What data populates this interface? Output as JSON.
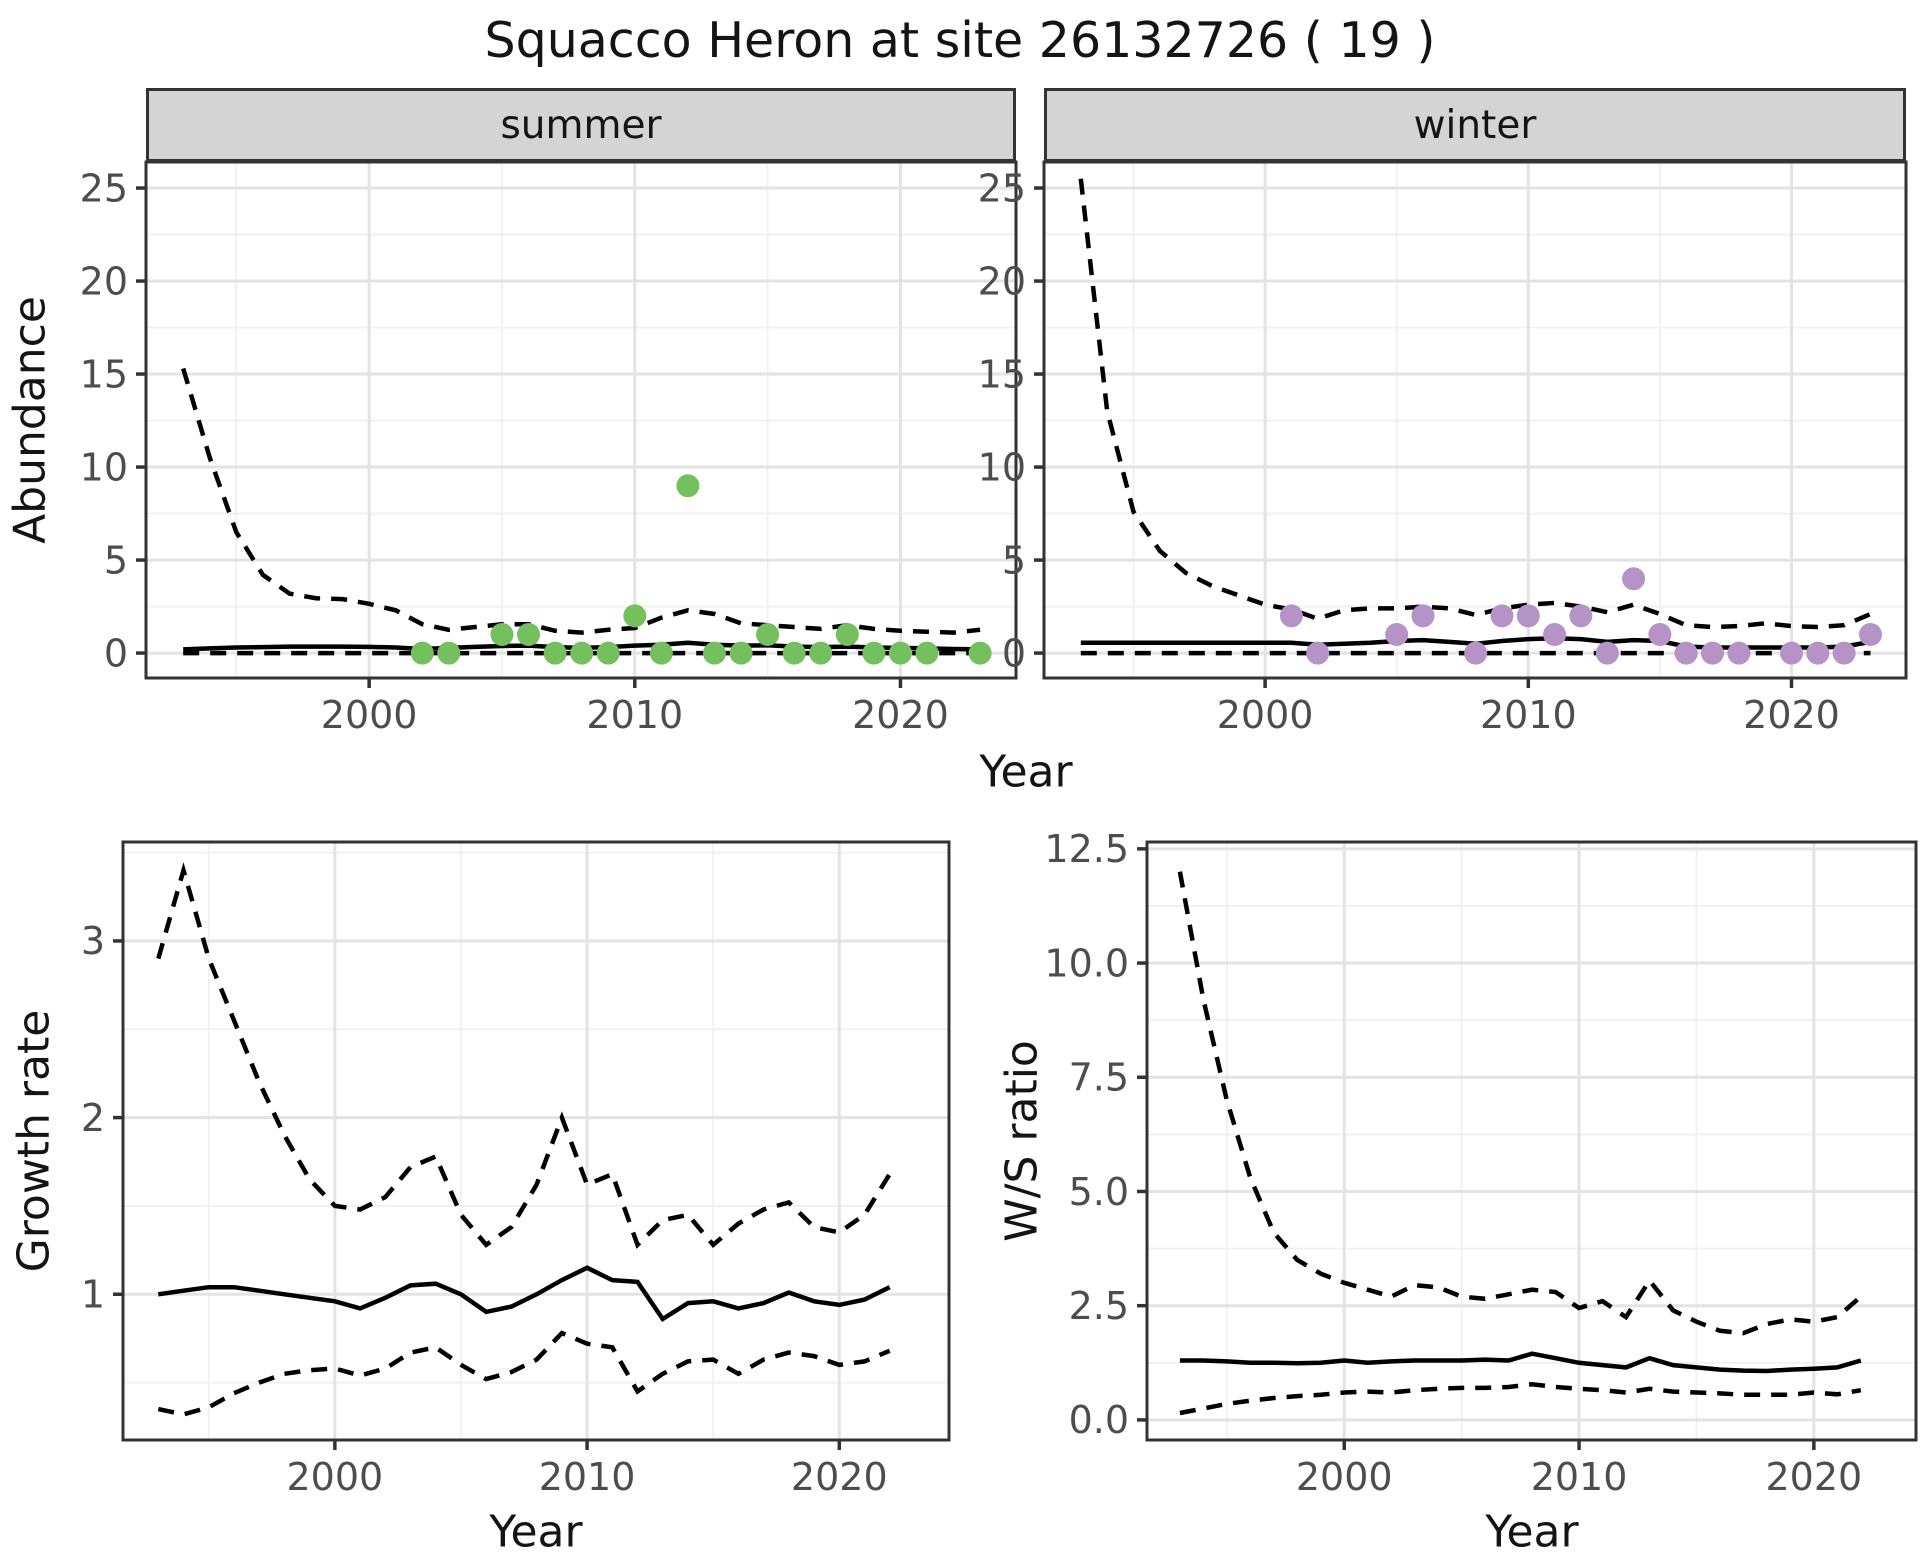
{
  "page": {
    "title": "Squacco Heron at site 26132726 ( 19 )"
  },
  "facets": {
    "summer_label": "summer",
    "winter_label": "winter"
  },
  "axes": {
    "abundance_label": "Abundance",
    "growth_label": "Growth rate",
    "ws_label": "W/S ratio",
    "year_label_top": "Year",
    "year_label_bottom_left": "Year",
    "year_label_bottom_right": "Year"
  },
  "style": {
    "summer_point_color": "#74bf5e",
    "winter_point_color": "#b593c7",
    "line_color": "#000000",
    "grid_major_color": "#e3e3e3",
    "grid_minor_color": "#f0f0f0",
    "panel_border_color": "#333333",
    "tick_mark_color": "#333333",
    "tick_label_color": "#4d4d4d",
    "strip_bg_color": "#d4d4d4"
  },
  "chart_data": [
    {
      "id": "abundance_summer",
      "type": "line",
      "facet": "summer",
      "xlabel": "Year",
      "ylabel": "Abundance",
      "xlim": [
        1991.6,
        2024.35
      ],
      "ylim": [
        -1.34,
        26.4
      ],
      "xticks": {
        "major": [
          2000,
          2010,
          2020
        ],
        "minor": [
          1995,
          2005,
          2015
        ],
        "labels": [
          "2000",
          "2010",
          "2020"
        ]
      },
      "yticks": {
        "major": [
          0,
          5,
          10,
          15,
          20,
          25
        ],
        "minor": [
          2.5,
          7.5,
          12.5,
          17.5,
          22.5
        ],
        "labels": [
          "0",
          "5",
          "10",
          "15",
          "20",
          "25"
        ]
      },
      "x": [
        1993,
        1994,
        1995,
        1996,
        1997,
        1998,
        1999,
        2000,
        2001,
        2002,
        2003,
        2004,
        2005,
        2006,
        2007,
        2008,
        2009,
        2010,
        2011,
        2012,
        2013,
        2014,
        2015,
        2016,
        2017,
        2018,
        2019,
        2020,
        2021,
        2022,
        2023
      ],
      "series": [
        {
          "name": "upper_95ci",
          "style": "dashed",
          "values": [
            15.3,
            10.5,
            6.5,
            4.2,
            3.2,
            2.95,
            2.9,
            2.65,
            2.3,
            1.55,
            1.25,
            1.4,
            1.55,
            1.55,
            1.2,
            1.1,
            1.25,
            1.35,
            1.9,
            2.3,
            2.1,
            1.6,
            1.5,
            1.4,
            1.3,
            1.5,
            1.3,
            1.2,
            1.15,
            1.1,
            1.25
          ]
        },
        {
          "name": "median",
          "style": "solid",
          "values": [
            0.2,
            0.25,
            0.3,
            0.32,
            0.35,
            0.35,
            0.35,
            0.33,
            0.3,
            0.22,
            0.28,
            0.33,
            0.38,
            0.4,
            0.32,
            0.28,
            0.32,
            0.4,
            0.45,
            0.55,
            0.45,
            0.4,
            0.42,
            0.35,
            0.32,
            0.35,
            0.3,
            0.28,
            0.25,
            0.22,
            0.2
          ]
        },
        {
          "name": "lower_95ci",
          "style": "dashed",
          "values": [
            0,
            0,
            0,
            0,
            0,
            0,
            0,
            0,
            0,
            0,
            0,
            0,
            0,
            0,
            0,
            0,
            0,
            0,
            0,
            0,
            0,
            0,
            0,
            0,
            0,
            0,
            0,
            0,
            0,
            0,
            0
          ]
        }
      ],
      "points": {
        "name": "observed_counts_summer",
        "color": "#74bf5e",
        "x": [
          2002,
          2003,
          2005,
          2006,
          2007,
          2008,
          2009,
          2010,
          2011,
          2012,
          2013,
          2014,
          2015,
          2016,
          2017,
          2018,
          2019,
          2020,
          2021,
          2023
        ],
        "y": [
          0,
          0,
          1,
          1,
          0,
          0,
          0,
          2,
          0,
          9,
          0,
          0,
          1,
          0,
          0,
          1,
          0,
          0,
          0,
          0
        ]
      }
    },
    {
      "id": "abundance_winter",
      "type": "line",
      "facet": "winter",
      "xlabel": "Year",
      "ylabel": "Abundance",
      "xlim": [
        1991.6,
        2024.35
      ],
      "ylim": [
        -1.34,
        26.4
      ],
      "xticks": {
        "major": [
          2000,
          2010,
          2020
        ],
        "minor": [
          1995,
          2005,
          2015
        ],
        "labels": [
          "2000",
          "2010",
          "2020"
        ]
      },
      "yticks": {
        "major": [
          0,
          5,
          10,
          15,
          20,
          25
        ],
        "minor": [
          2.5,
          7.5,
          12.5,
          17.5,
          22.5
        ],
        "labels": [
          "0",
          "5",
          "10",
          "15",
          "20",
          "25"
        ]
      },
      "x": [
        1993,
        1994,
        1995,
        1996,
        1997,
        1998,
        1999,
        2000,
        2001,
        2002,
        2003,
        2004,
        2005,
        2006,
        2007,
        2008,
        2009,
        2010,
        2011,
        2012,
        2013,
        2014,
        2015,
        2016,
        2017,
        2018,
        2019,
        2020,
        2021,
        2022,
        2023
      ],
      "series": [
        {
          "name": "upper_95ci",
          "style": "dashed",
          "values": [
            25.5,
            13,
            7.6,
            5.5,
            4.3,
            3.6,
            3.1,
            2.6,
            2.35,
            1.85,
            2.3,
            2.4,
            2.4,
            2.5,
            2.4,
            2.05,
            2.4,
            2.6,
            2.7,
            2.5,
            2.2,
            2.6,
            2.1,
            1.5,
            1.4,
            1.45,
            1.6,
            1.45,
            1.4,
            1.5,
            2.1
          ]
        },
        {
          "name": "median",
          "style": "solid",
          "values": [
            0.55,
            0.55,
            0.55,
            0.55,
            0.55,
            0.55,
            0.55,
            0.55,
            0.55,
            0.45,
            0.5,
            0.55,
            0.65,
            0.7,
            0.6,
            0.5,
            0.65,
            0.75,
            0.8,
            0.75,
            0.6,
            0.7,
            0.65,
            0.35,
            0.3,
            0.3,
            0.3,
            0.3,
            0.3,
            0.35,
            0.6
          ]
        },
        {
          "name": "lower_95ci",
          "style": "dashed",
          "values": [
            0,
            0,
            0,
            0,
            0,
            0,
            0,
            0,
            0,
            0,
            0,
            0,
            0,
            0,
            0,
            0,
            0,
            0,
            0,
            0,
            0,
            0,
            0,
            0,
            0,
            0,
            0,
            0,
            0,
            0,
            0
          ]
        }
      ],
      "points": {
        "name": "observed_counts_winter",
        "color": "#b593c7",
        "x": [
          2001,
          2002,
          2005,
          2006,
          2008,
          2009,
          2010,
          2011,
          2012,
          2013,
          2014,
          2015,
          2016,
          2017,
          2018,
          2020,
          2021,
          2022,
          2023
        ],
        "y": [
          2,
          0,
          1,
          2,
          0,
          2,
          2,
          1,
          2,
          0,
          4,
          1,
          0,
          0,
          0,
          0,
          0,
          0,
          1
        ]
      }
    },
    {
      "id": "growth_rate",
      "type": "line",
      "facet": null,
      "xlabel": "Year",
      "ylabel": "Growth rate",
      "xlim": [
        1991.6,
        2024.35
      ],
      "ylim": [
        0.175,
        3.56
      ],
      "xticks": {
        "major": [
          2000,
          2010,
          2020
        ],
        "minor": [
          1995,
          2005,
          2015
        ],
        "labels": [
          "2000",
          "2010",
          "2020"
        ]
      },
      "yticks": {
        "major": [
          1,
          2,
          3
        ],
        "minor": [
          0.5,
          1.5,
          2.5,
          3.5
        ],
        "labels": [
          "1",
          "2",
          "3"
        ]
      },
      "x": [
        1993,
        1994,
        1995,
        1996,
        1997,
        1998,
        1999,
        2000,
        2001,
        2002,
        2003,
        2004,
        2005,
        2006,
        2007,
        2008,
        2009,
        2010,
        2011,
        2012,
        2013,
        2014,
        2015,
        2016,
        2017,
        2018,
        2019,
        2020,
        2021,
        2022
      ],
      "series": [
        {
          "name": "upper_95ci",
          "style": "dashed",
          "values": [
            2.9,
            3.4,
            2.9,
            2.55,
            2.2,
            1.9,
            1.65,
            1.5,
            1.48,
            1.55,
            1.72,
            1.78,
            1.45,
            1.28,
            1.38,
            1.62,
            2.0,
            1.62,
            1.68,
            1.28,
            1.42,
            1.45,
            1.28,
            1.4,
            1.48,
            1.52,
            1.38,
            1.35,
            1.45,
            1.68
          ]
        },
        {
          "name": "median",
          "style": "solid",
          "values": [
            1.0,
            1.02,
            1.04,
            1.04,
            1.02,
            1.0,
            0.98,
            0.96,
            0.92,
            0.98,
            1.05,
            1.06,
            1.0,
            0.9,
            0.93,
            1.0,
            1.08,
            1.15,
            1.08,
            1.07,
            0.86,
            0.95,
            0.96,
            0.92,
            0.95,
            1.01,
            0.96,
            0.94,
            0.97,
            1.04
          ]
        },
        {
          "name": "lower_95ci",
          "style": "dashed",
          "values": [
            0.35,
            0.32,
            0.36,
            0.44,
            0.5,
            0.55,
            0.57,
            0.58,
            0.54,
            0.58,
            0.67,
            0.7,
            0.6,
            0.52,
            0.56,
            0.63,
            0.78,
            0.72,
            0.7,
            0.45,
            0.55,
            0.62,
            0.63,
            0.55,
            0.63,
            0.67,
            0.65,
            0.6,
            0.62,
            0.68
          ]
        }
      ],
      "points": null
    },
    {
      "id": "ws_ratio",
      "type": "line",
      "facet": null,
      "xlabel": "Year",
      "ylabel": "W/S ratio",
      "xlim": [
        1991.6,
        2024.35
      ],
      "ylim": [
        -0.44,
        12.65
      ],
      "xticks": {
        "major": [
          2000,
          2010,
          2020
        ],
        "minor": [
          1995,
          2005,
          2015
        ],
        "labels": [
          "2000",
          "2010",
          "2020"
        ]
      },
      "yticks": {
        "major": [
          0,
          2.5,
          5,
          7.5,
          10,
          12.5
        ],
        "minor": [
          1.25,
          3.75,
          6.25,
          8.75,
          11.25
        ],
        "labels": [
          "0.0",
          "2.5",
          "5.0",
          "7.5",
          "10.0",
          "12.5"
        ]
      },
      "x": [
        1993,
        1994,
        1995,
        1996,
        1997,
        1998,
        1999,
        2000,
        2001,
        2002,
        2003,
        2004,
        2005,
        2006,
        2007,
        2008,
        2009,
        2010,
        2011,
        2012,
        2013,
        2014,
        2015,
        2016,
        2017,
        2018,
        2019,
        2020,
        2021,
        2022
      ],
      "series": [
        {
          "name": "upper_95ci",
          "style": "dashed",
          "values": [
            12.0,
            9.2,
            7.0,
            5.3,
            4.1,
            3.5,
            3.2,
            3.0,
            2.85,
            2.7,
            2.95,
            2.9,
            2.7,
            2.65,
            2.75,
            2.85,
            2.8,
            2.45,
            2.6,
            2.25,
            3.05,
            2.4,
            2.15,
            1.95,
            1.9,
            2.1,
            2.2,
            2.15,
            2.25,
            2.7
          ]
        },
        {
          "name": "median",
          "style": "solid",
          "values": [
            1.3,
            1.3,
            1.28,
            1.25,
            1.25,
            1.24,
            1.25,
            1.3,
            1.25,
            1.28,
            1.3,
            1.3,
            1.3,
            1.32,
            1.3,
            1.45,
            1.35,
            1.25,
            1.2,
            1.15,
            1.35,
            1.2,
            1.15,
            1.1,
            1.08,
            1.07,
            1.1,
            1.12,
            1.15,
            1.3
          ]
        },
        {
          "name": "lower_95ci",
          "style": "dashed",
          "values": [
            0.15,
            0.25,
            0.35,
            0.42,
            0.48,
            0.52,
            0.55,
            0.6,
            0.62,
            0.6,
            0.65,
            0.68,
            0.7,
            0.7,
            0.72,
            0.78,
            0.72,
            0.68,
            0.65,
            0.6,
            0.68,
            0.62,
            0.6,
            0.58,
            0.55,
            0.55,
            0.55,
            0.6,
            0.56,
            0.65
          ]
        }
      ],
      "points": null
    }
  ]
}
